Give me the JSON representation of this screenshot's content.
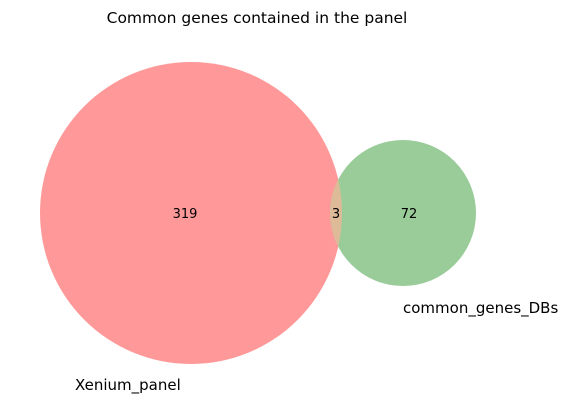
{
  "title": "Common genes contained in the panel",
  "sets": [
    {
      "name": "Xenium_panel",
      "color": "#ff9999"
    },
    {
      "name": "common_genes_DBs",
      "color": "#99cc99"
    }
  ],
  "overlap_color": "#ddbb99",
  "counts": {
    "only_xenium_panel": "319",
    "intersection": "3",
    "only_common_genes_DBs": "72"
  }
}
